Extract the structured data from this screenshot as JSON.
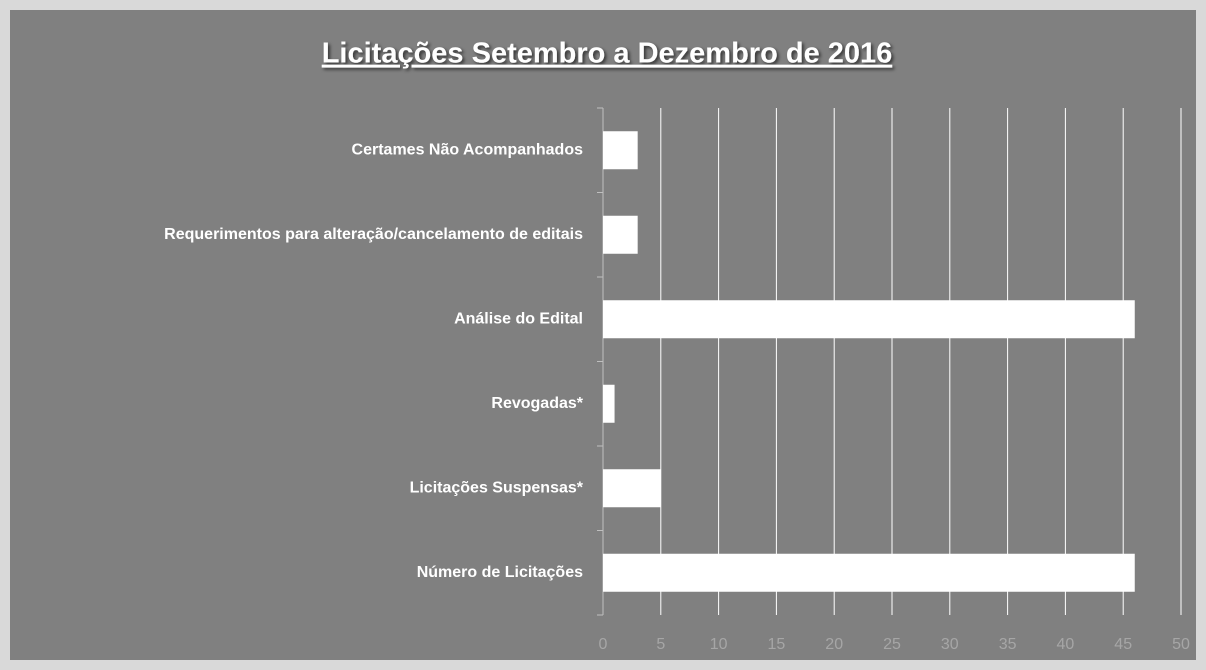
{
  "chart_data": {
    "type": "hbar",
    "title": "Licitações Setembro a Dezembro de 2016",
    "categories": [
      "Certames Não Acompanhados",
      "Requerimentos para alteração/cancelamento de editais",
      "Análise do Edital",
      "Revogadas*",
      "Licitações Suspensas*",
      "Número de Licitações"
    ],
    "values": [
      3,
      3,
      46,
      1,
      5,
      46
    ],
    "color": "#ffffff",
    "xlim": [
      0,
      50
    ],
    "xticks": [
      0,
      5,
      10,
      15,
      20,
      25,
      30,
      35,
      40,
      45,
      50
    ],
    "grid": true
  }
}
